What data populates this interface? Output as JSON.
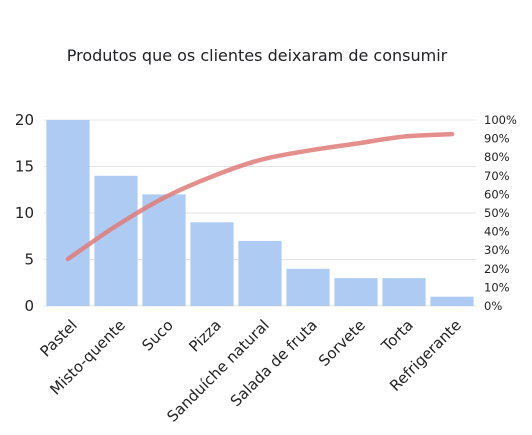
{
  "chart_data": {
    "type": "bar",
    "title": "Produtos que os clientes deixaram de consumir",
    "categories": [
      "Pastel",
      "Misto-quente",
      "Suco",
      "Pizza",
      "Sanduíche natural",
      "Salada de fruta",
      "Sorvete",
      "Torta",
      "Refrigerante"
    ],
    "series": [
      {
        "values": [
          20,
          14,
          12,
          9,
          7,
          4,
          3,
          3,
          1
        ]
      },
      {
        "values": [
          25.3,
          43.0,
          58.2,
          69.6,
          78.5,
          83.5,
          87.3,
          91.1,
          92.4
        ],
        "axis": "right",
        "kind": "line"
      }
    ],
    "ylim": [
      0,
      20
    ],
    "y_ticks": [
      "0",
      "5",
      "10",
      "15",
      "20"
    ],
    "y2lim": [
      0,
      100
    ],
    "y2_ticks": [
      "0%",
      "10%",
      "20%",
      "30%",
      "40%",
      "50%",
      "60%",
      "70%",
      "80%",
      "90%",
      "100%"
    ],
    "grid": true,
    "colors": {
      "bar": "#aecbf3",
      "line": "#e07b78",
      "grid": "#e3e3e3"
    }
  }
}
